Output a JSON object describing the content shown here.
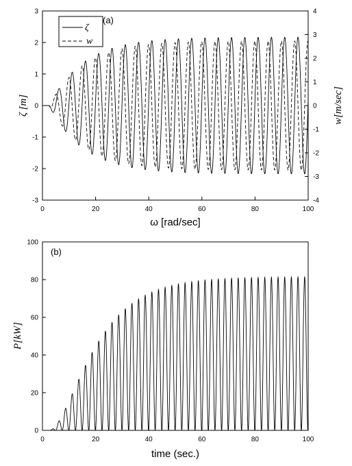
{
  "chart_data": [
    {
      "panel": "(a)",
      "type": "line",
      "xlabel": "ω [rad/sec]",
      "ylabel_left": "ζ [m]",
      "ylabel_right": "w[m/sec]",
      "xlim": [
        0,
        100
      ],
      "ylim_left": [
        -3,
        3
      ],
      "ylim_right": [
        -4,
        4
      ],
      "xticks": [
        0,
        20,
        40,
        60,
        80,
        100
      ],
      "yticks_left": [
        -3,
        -2,
        -1,
        0,
        1,
        2,
        3
      ],
      "yticks_right": [
        -4,
        -3,
        -2,
        -1,
        0,
        1,
        2,
        3,
        4
      ],
      "legend": {
        "position": "top-left",
        "entries": [
          {
            "label": "ζ",
            "style": "solid"
          },
          {
            "label": "w",
            "style": "dashed"
          }
        ]
      },
      "series": [
        {
          "name": "ζ",
          "axis": "left",
          "style": "solid",
          "color": "#000000",
          "signal": {
            "form": "sin",
            "amplitude": 2.17,
            "omega": 1.2566,
            "phase": 0.1,
            "ramp_start": 2.5,
            "ramp_tau": 13
          }
        },
        {
          "name": "w",
          "axis": "right",
          "style": "dashed",
          "color": "#000000",
          "signal": {
            "form": "cos",
            "amplitude": 2.73,
            "omega": 1.2566,
            "phase": 0.1,
            "ramp_start": 2.5,
            "ramp_tau": 13
          }
        }
      ],
      "grid": false
    },
    {
      "panel": "(b)",
      "type": "line",
      "xlabel": "time (sec.)",
      "ylabel": "P[kW]",
      "xlim": [
        0,
        100
      ],
      "ylim": [
        0,
        100
      ],
      "xticks": [
        0,
        20,
        40,
        60,
        80,
        100
      ],
      "yticks": [
        0,
        20,
        40,
        60,
        80,
        100
      ],
      "series": [
        {
          "style": "solid",
          "color": "#000000",
          "signal": {
            "form": "sin_squared",
            "peak": 81.5,
            "omega": 1.2566,
            "phase": 0.1,
            "ramp_start": 2.5,
            "ramp_tau": 13
          }
        }
      ],
      "grid": false
    }
  ]
}
